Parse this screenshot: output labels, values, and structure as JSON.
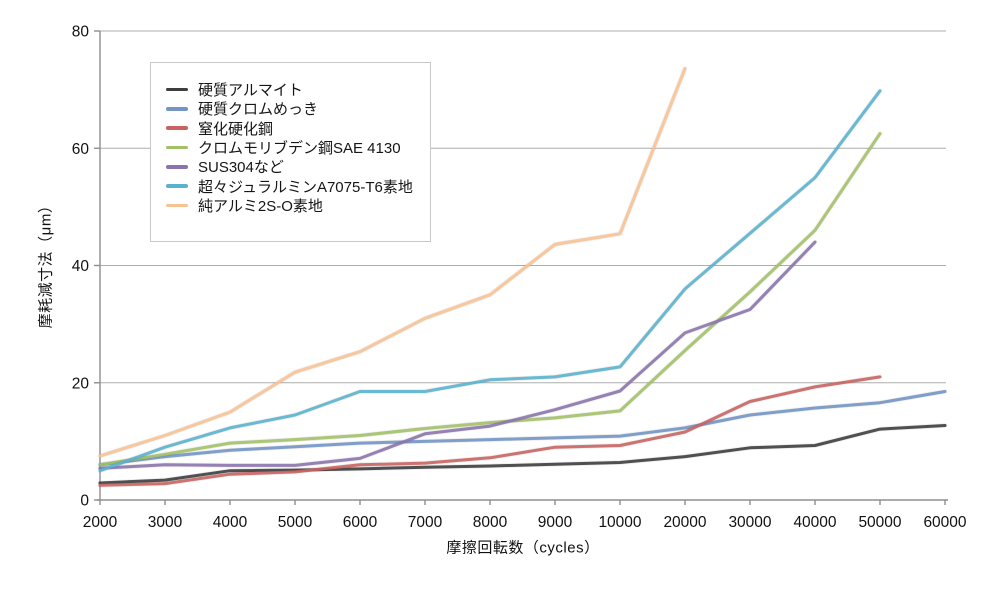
{
  "colors": {
    "background": "#ffffff",
    "grid": "#adadad",
    "axis": "#8f8f8f",
    "tick_text": "#111111",
    "legend_border": "#c9c9c9"
  },
  "chart_data": {
    "type": "line",
    "title": "",
    "xlabel": "摩擦回転数（cycles）",
    "ylabel": "摩耗減寸法（μm）",
    "x_tick_labels": [
      "2000",
      "3000",
      "4000",
      "5000",
      "6000",
      "7000",
      "8000",
      "9000",
      "10000",
      "20000",
      "30000",
      "40000",
      "50000",
      "60000"
    ],
    "x_scale": "categorical-even-spacing",
    "y_ticks": [
      0,
      20,
      40,
      60,
      80
    ],
    "ylim": [
      0,
      80
    ],
    "grid": "horizontal-only",
    "legend_position": "upper-left-inside",
    "series": [
      {
        "name": "硬質アルマイト",
        "color": "#3e3e3e",
        "values": [
          2.9,
          3.4,
          5.0,
          5.1,
          5.3,
          5.6,
          5.8,
          6.1,
          6.4,
          7.4,
          8.9,
          9.3,
          12.1,
          12.7
        ]
      },
      {
        "name": "硬質クロムめっき",
        "color": "#7295c5",
        "values": [
          6.0,
          7.4,
          8.5,
          9.1,
          9.7,
          10.0,
          10.3,
          10.6,
          10.9,
          12.3,
          14.5,
          15.7,
          16.6,
          18.5
        ]
      },
      {
        "name": "窒化硬化鋼",
        "color": "#c96361",
        "values": [
          2.5,
          2.8,
          4.4,
          4.8,
          6.0,
          6.3,
          7.2,
          9.0,
          9.3,
          11.6,
          16.8,
          19.3,
          21.0,
          null
        ]
      },
      {
        "name": "クロムモリブデン鋼SAE 4130",
        "color": "#a2c065",
        "values": [
          6.0,
          7.8,
          9.7,
          10.3,
          11.0,
          12.2,
          13.2,
          14.0,
          15.2,
          25.5,
          35.5,
          46.0,
          62.5,
          null
        ]
      },
      {
        "name": "SUS304など",
        "color": "#8b74ad",
        "values": [
          5.4,
          6.0,
          5.9,
          5.9,
          7.1,
          11.3,
          12.6,
          15.4,
          18.6,
          28.5,
          32.5,
          44.0,
          null,
          null
        ]
      },
      {
        "name": "超々ジュラルミンA7075-T6素地",
        "color": "#59b2ce",
        "values": [
          5.0,
          9.0,
          12.3,
          14.5,
          18.5,
          18.5,
          20.5,
          21.0,
          22.7,
          36.0,
          45.5,
          55.0,
          69.8,
          null
        ]
      },
      {
        "name": "純アルミ2S-O素地",
        "color": "#f9c291",
        "values": [
          7.5,
          11.0,
          15.0,
          21.8,
          25.3,
          31.0,
          35.0,
          43.6,
          45.4,
          73.6,
          null,
          null,
          null,
          null
        ]
      }
    ]
  }
}
